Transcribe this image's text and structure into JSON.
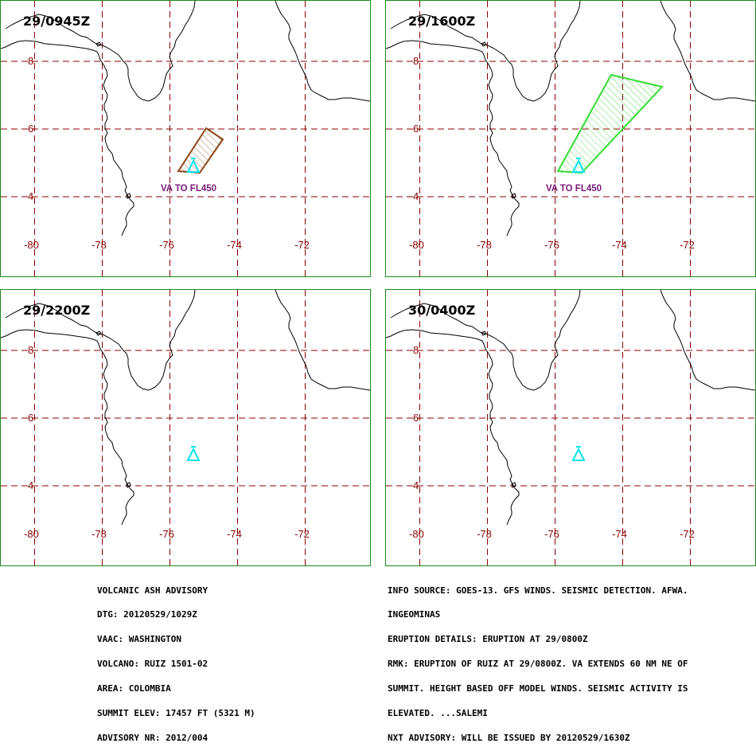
{
  "panels": [
    {
      "time": "29/0945Z",
      "ash": "small",
      "va_label": "VA TO FL450"
    },
    {
      "time": "29/1600Z",
      "ash": "large",
      "va_label": "VA TO FL450"
    },
    {
      "time": "29/2200Z",
      "ash": "none",
      "va_label": ""
    },
    {
      "time": "30/0400Z",
      "ash": "none",
      "va_label": ""
    }
  ],
  "map": {
    "lon_labels": [
      "-80",
      "-78",
      "-76",
      "-74",
      "-72"
    ],
    "lat_labels": [
      "8",
      "6",
      "4"
    ],
    "colors": {
      "grid": "#8b0000",
      "coast": "#000000",
      "frame": "#1a8a1a",
      "volcano": "#00e5ee",
      "ash_small": "#8b4513",
      "ash_large": "#33dd33",
      "va_label": "#7a1a7a"
    },
    "volcano_icon": "volcano-triangle-icon"
  },
  "advisory": {
    "left_lines": [
      "VOLCANIC ASH ADVISORY",
      "DTG: 20120529/1029Z",
      "VAAC: WASHINGTON",
      "VOLCANO: RUIZ 1501-02",
      "AREA: COLOMBIA",
      "SUMMIT ELEV: 17457 FT (5321 M)",
      "ADVISORY NR: 2012/004"
    ],
    "right_lines": [
      "INFO SOURCE: GOES-13. GFS WINDS. SEISMIC DETECTION. AFWA.",
      "INGEOMINAS",
      "ERUPTION DETAILS: ERUPTION AT 29/0800Z",
      "RMK: ERUPTION OF RUIZ AT 29/0800Z. VA EXTENDS 60 NM NE OF",
      "SUMMIT. HEIGHT BASED OFF MODEL WINDS. SEISMIC ACTIVITY IS",
      "ELEVATED. ...SALEMI",
      "NXT ADVISORY: WILL BE ISSUED BY 20120529/1630Z"
    ]
  }
}
